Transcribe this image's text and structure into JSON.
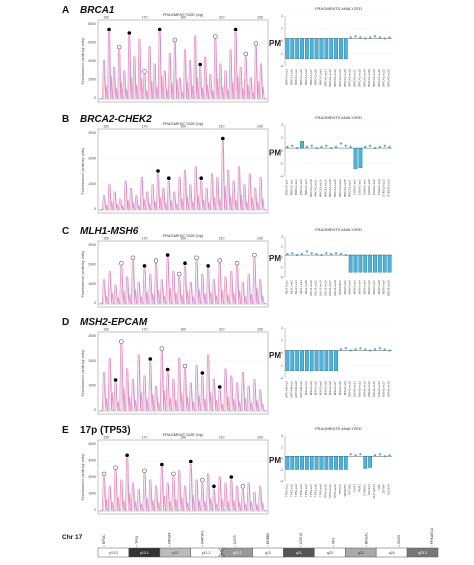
{
  "panels": [
    {
      "letter": "A",
      "title": "BRCA1",
      "title_italic": true,
      "trace": {
        "top_label": "FRAGMENT SIZE (bp)",
        "ticks_top": [
          "150",
          "170",
          "190",
          "210",
          "230"
        ],
        "ylabel": "Fluorescence (arbitrary units)",
        "yticks": [
          "8000",
          "6000",
          "4000",
          "2000",
          "0"
        ],
        "peaks": [
          0.55,
          0.95,
          0.45,
          0.7,
          0.4,
          0.9,
          0.6,
          0.85,
          0.35,
          0.75,
          0.5,
          0.95,
          0.4,
          0.65,
          0.8,
          0.3,
          0.7,
          0.55,
          0.9,
          0.45,
          0.6,
          0.35,
          0.85,
          0.5,
          0.4,
          0.7,
          0.95,
          0.45,
          0.6,
          0.3,
          0.75,
          0.5
        ],
        "filled_markers": [
          1,
          5,
          11,
          19,
          26
        ],
        "open_markers": [
          3,
          8,
          14,
          22,
          28,
          30
        ]
      },
      "bars": {
        "title": "FRAGMENTS ANALYZED",
        "ylabel": "PM",
        "yticks": [
          "4",
          "2",
          "0",
          "-2",
          "-4"
        ],
        "values": [
          -0.9,
          -0.9,
          -0.9,
          -0.9,
          -0.9,
          -0.9,
          -0.9,
          -0.9,
          -0.9,
          -0.9,
          -0.9,
          -0.9,
          -0.9,
          0.05,
          0.1,
          0.05,
          0.0,
          0.05,
          0.1,
          0.05,
          0.0,
          0.05
        ],
        "labels": [
          "BRCA1-ex1",
          "BRCA1-ex2",
          "BRCA1-ex3",
          "BRCA1-ex5",
          "BRCA1-ex6",
          "BRCA1-ex7",
          "BRCA1-ex8",
          "BRCA1-ex9",
          "BRCA1-ex11",
          "BRCA1-ex12",
          "BRCA1-ex13",
          "BRCA1-ex14",
          "BRCA1-ex15",
          "BRCA1-ex16",
          "BRCA1-ex17",
          "BRCA1-ex18",
          "BRCA1-ex19",
          "BRCA1-ex20",
          "BRCA1-ex21",
          "BRCA1-ex22",
          "BRCA1-ex23",
          "BRCA1-ex24"
        ]
      }
    },
    {
      "letter": "B",
      "title": "BRCA2-CHEK2",
      "title_italic": true,
      "trace": {
        "top_label": "FRAGMENT SIZE (bp)",
        "ticks_top": [
          "150",
          "170",
          "190",
          "210",
          "230"
        ],
        "ylabel": "Fluorescence (arbitrary units)",
        "yticks": [
          "3000",
          "2000",
          "1000",
          "0"
        ],
        "peaks": [
          0.2,
          0.35,
          0.25,
          0.15,
          0.4,
          0.3,
          0.2,
          0.45,
          0.25,
          0.35,
          0.5,
          0.3,
          0.4,
          0.25,
          0.45,
          0.55,
          0.35,
          0.6,
          0.4,
          0.3,
          0.5,
          0.45,
          0.95,
          0.55,
          0.4,
          0.6,
          0.35,
          0.5,
          0.3,
          0.45
        ],
        "filled_markers": [
          10,
          12,
          18,
          22
        ],
        "open_markers": []
      },
      "bars": {
        "title": "FRAGMENTS ANALYZED",
        "ylabel": "PM",
        "yticks": [
          "4",
          "2",
          "0",
          "-2",
          "-4"
        ],
        "values": [
          0.05,
          0.1,
          0.0,
          0.3,
          0.05,
          0.1,
          0.0,
          0.05,
          0.1,
          0.0,
          0.05,
          0.2,
          0.1,
          0.05,
          -0.9,
          -0.85,
          0.05,
          0.1,
          0.0,
          0.05,
          0.1,
          0.05
        ],
        "labels": [
          "BRCA2-ex1",
          "BRCA2-ex2",
          "BRCA2-ex3",
          "BRCA2-ex5",
          "BRCA2-ex6",
          "BRCA2-ex10",
          "BRCA2-ex11",
          "BRCA2-ex14",
          "BRCA2-ex16",
          "BRCA2-ex18",
          "BRCA2-ex20",
          "BRCA2-ex22",
          "BRCA2-ex25",
          "BRCA2-ex27",
          "CHEK2-ex1",
          "CHEK2-ex2",
          "CHEK2-ex3",
          "CHEK2-ex5",
          "CHEK2-ex8",
          "CHEK2-ex9",
          "CHEK2-ex12",
          "CHEK2-ex14"
        ]
      }
    },
    {
      "letter": "C",
      "title": "MLH1-MSH6",
      "title_italic": true,
      "trace": {
        "top_label": "FRAGMENT SIZE (bp)",
        "ticks_top": [
          "150",
          "170",
          "190",
          "210",
          "230"
        ],
        "ylabel": "Fluorescence (arbitrary units)",
        "yticks": [
          "3000",
          "2000",
          "1000",
          "0"
        ],
        "peaks": [
          0.45,
          0.6,
          0.35,
          0.7,
          0.5,
          0.8,
          0.4,
          0.65,
          0.55,
          0.75,
          0.45,
          0.85,
          0.6,
          0.5,
          0.7,
          0.4,
          0.8,
          0.55,
          0.65,
          0.45,
          0.75,
          0.5,
          0.6,
          0.7,
          0.4,
          0.55,
          0.85,
          0.45
        ],
        "filled_markers": [
          7,
          11,
          14,
          18
        ],
        "open_markers": [
          3,
          5,
          9,
          13,
          16,
          20,
          23,
          26
        ]
      },
      "bars": {
        "title": "FRAGMENTS ANALYZED",
        "ylabel": "PM",
        "yticks": [
          "4",
          "2",
          "0",
          "-2",
          "-4"
        ],
        "values": [
          0.05,
          0.1,
          0.0,
          0.05,
          0.2,
          0.1,
          0.05,
          0.0,
          0.1,
          0.05,
          0.1,
          0.05,
          0.0,
          -0.95,
          -0.95,
          -0.95,
          -0.95,
          -0.95,
          -0.95,
          -0.95,
          -0.95,
          -0.95
        ],
        "labels": [
          "MLH1-ex1",
          "MLH1-ex2",
          "MLH1-ex4",
          "MLH1-ex6",
          "MLH1-ex8",
          "MLH1-ex10",
          "MLH1-ex12",
          "MLH1-ex14",
          "MLH1-ex16",
          "MLH1-ex17",
          "MLH1-ex19",
          "EPM2AIP1",
          "MSH6-ex1",
          "MSH6-ex2",
          "MSH6-ex3",
          "MSH6-ex4",
          "MSH6-ex5",
          "MSH6-ex6",
          "MSH6-ex7",
          "MSH6-ex8",
          "MSH6-ex9",
          "MSH6-ex10"
        ]
      }
    },
    {
      "letter": "D",
      "title": "MSH2-EPCAM",
      "title_italic": true,
      "trace": {
        "top_label": "",
        "ticks_top": [
          "150",
          "170",
          "190",
          "210",
          "230"
        ],
        "ylabel": "Fluorescence (arbitrary units)",
        "yticks": [
          "3000",
          "2000",
          "1000",
          "0"
        ],
        "peaks": [
          0.55,
          0.75,
          0.4,
          0.95,
          0.6,
          0.45,
          0.8,
          0.5,
          0.7,
          0.35,
          0.85,
          0.55,
          0.45,
          0.75,
          0.6,
          0.4,
          0.65,
          0.5,
          0.8,
          0.45,
          0.3,
          0.6,
          0.5,
          0.4,
          0.55,
          0.35,
          0.45,
          0.3
        ],
        "filled_markers": [
          2,
          8,
          11,
          17,
          20
        ],
        "open_markers": [
          3,
          10,
          14
        ]
      },
      "bars": {
        "title": "",
        "ylabel": "PM",
        "yticks": [
          "4",
          "2",
          "0",
          "-2",
          "-4"
        ],
        "values": [
          -0.9,
          -0.9,
          -0.9,
          -0.9,
          -0.9,
          -0.9,
          -0.9,
          -0.9,
          -0.9,
          -0.9,
          -0.9,
          0.05,
          0.1,
          0.0,
          0.05,
          0.1,
          0.05,
          0.0,
          0.05,
          0.1,
          0.05,
          0.0
        ],
        "labels": [
          "EPCAM-ex2",
          "EPCAM-ex3",
          "EPCAM-ex8",
          "EPCAM-ex9",
          "MSH2-ex1",
          "MSH2-ex2",
          "MSH2-ex3",
          "MSH2-ex4",
          "MSH2-ex5",
          "MSH2-ex6",
          "MSH2-ex7",
          "MSH2-ex8",
          "MSH2-ex9",
          "MSH2-ex10",
          "MSH2-ex11",
          "MSH2-ex12",
          "MSH2-ex13",
          "MSH2-ex14",
          "MSH2-ex15",
          "MSH2-ex16",
          "MSH2-ex17",
          "MSH2-ex18"
        ]
      }
    },
    {
      "letter": "E",
      "title": "17p (TP53)",
      "title_italic": false,
      "trace": {
        "top_label": "FRAGMENT SIZE (bp)",
        "ticks_top": [
          "150",
          "170",
          "190",
          "210",
          "230"
        ],
        "ylabel": "Fluorescence (arbitrary units)",
        "yticks": [
          "4000",
          "3000",
          "2000",
          "1000",
          "0"
        ],
        "peaks": [
          0.55,
          0.4,
          0.65,
          0.5,
          0.85,
          0.45,
          0.35,
          0.6,
          0.5,
          0.4,
          0.7,
          0.45,
          0.55,
          0.65,
          0.4,
          0.75,
          0.5,
          0.45,
          0.6,
          0.35,
          0.55,
          0.45,
          0.5,
          0.4,
          0.35,
          0.45,
          0.3,
          0.4
        ],
        "filled_markers": [
          4,
          10,
          15,
          19,
          22
        ],
        "open_markers": [
          0,
          2,
          7,
          12,
          17,
          24
        ]
      },
      "bars": {
        "title": "FRAGMENTS ANALYZED",
        "ylabel": "PM",
        "yticks": [
          "4",
          "2",
          "0",
          "-2",
          "-4"
        ],
        "values": [
          -0.65,
          -0.65,
          -0.65,
          -0.65,
          -0.65,
          -0.65,
          -0.65,
          -0.65,
          -0.65,
          -0.65,
          -0.65,
          -0.65,
          -0.65,
          0.1,
          0.05,
          0.1,
          -0.6,
          -0.55,
          0.05,
          0.1,
          0.0,
          0.05
        ],
        "labels": [
          "TP53-ex1",
          "TP53-ex2",
          "TP53-ex4",
          "TP53-ex5",
          "TP53-ex6",
          "TP53-ex7",
          "TP53-ex8",
          "TP53-ex9",
          "TP53-ex10",
          "TP53-ex11",
          "TP53-ex12",
          "TP53-3'",
          "WRAP53",
          "ATP1B2",
          "CHD3",
          "PER1",
          "CYB5D1",
          "SLC2A4",
          "SLC16A13",
          "ZNF",
          "ZBTB4",
          "SLC2A4"
        ]
      }
    }
  ],
  "chromosome": {
    "label": "Chr 17",
    "genes": [
      "EPOC",
      "TP53",
      "OR3A4",
      "MAP2K3",
      "CD79",
      "ERBB2",
      "CDH19",
      "NF2",
      "BRCA1",
      "SOX9",
      "PRKAR1A"
    ],
    "bands": [
      "p13.2",
      "p13.1",
      "p12",
      "p11.2",
      "q11.2",
      "q12",
      "q21",
      "q22",
      "q23",
      "q24",
      "q25.3"
    ]
  },
  "colors": {
    "trace": "#e99ac4",
    "trace_dark": "#c66aa0",
    "bar": "#4db3d8",
    "bar_stroke": "#1f6f95",
    "grid": "#d0d0d0"
  },
  "chart_data": [
    {
      "type": "line",
      "title": "BRCA1",
      "xlabel": "FRAGMENT SIZE (bp)",
      "ylabel": "Fluorescence (arbitrary units)"
    },
    {
      "type": "bar",
      "title": "FRAGMENTS ANALYZED",
      "ylabel": "PM",
      "ylim": [
        -4,
        4
      ]
    },
    {
      "type": "line",
      "title": "BRCA2-CHEK2",
      "xlabel": "FRAGMENT SIZE (bp)",
      "ylabel": "Fluorescence (arbitrary units)"
    },
    {
      "type": "bar",
      "title": "FRAGMENTS ANALYZED",
      "ylabel": "PM",
      "ylim": [
        -4,
        4
      ]
    },
    {
      "type": "line",
      "title": "MLH1-MSH6",
      "xlabel": "FRAGMENT SIZE (bp)",
      "ylabel": "Fluorescence (arbitrary units)"
    },
    {
      "type": "bar",
      "title": "FRAGMENTS ANALYZED",
      "ylabel": "PM",
      "ylim": [
        -4,
        4
      ]
    },
    {
      "type": "line",
      "title": "MSH2-EPCAM",
      "ylabel": "Fluorescence (arbitrary units)"
    },
    {
      "type": "bar",
      "ylabel": "PM",
      "ylim": [
        -4,
        4
      ]
    },
    {
      "type": "line",
      "title": "17p (TP53)",
      "xlabel": "FRAGMENT SIZE (bp)",
      "ylabel": "Fluorescence (arbitrary units)"
    },
    {
      "type": "bar",
      "title": "FRAGMENTS ANALYZED",
      "ylabel": "PM",
      "ylim": [
        -4,
        4
      ]
    }
  ]
}
